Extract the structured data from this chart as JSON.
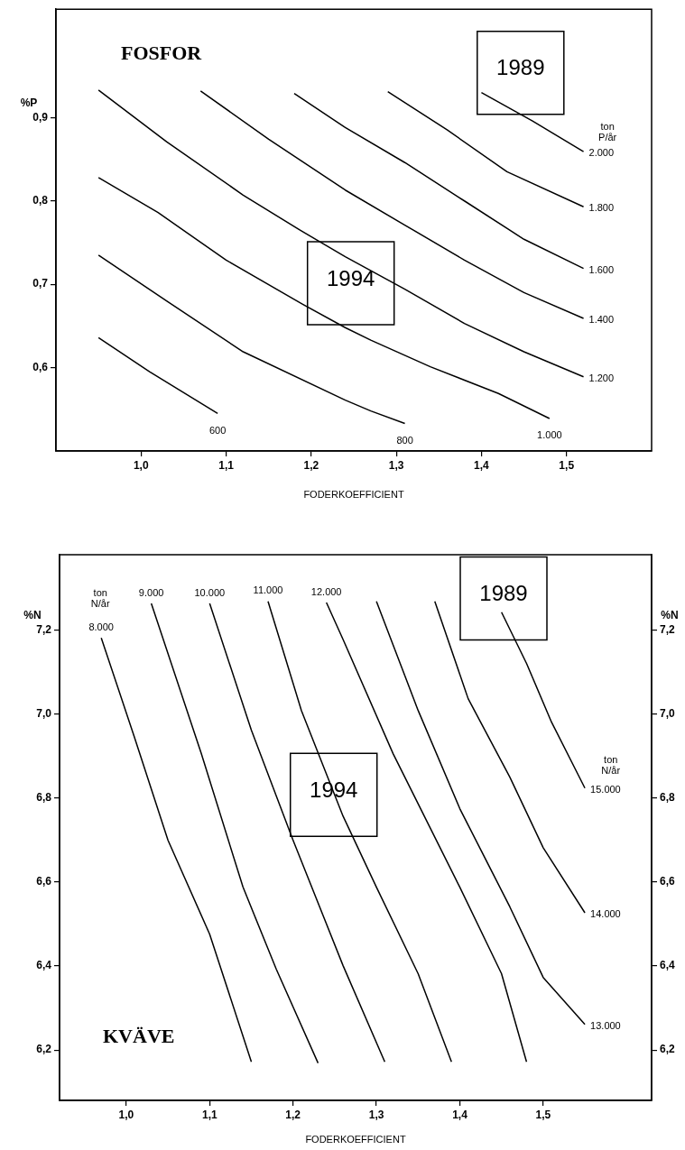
{
  "chart_data": [
    {
      "type": "line",
      "title": "FOSFOR",
      "xlabel": "FODERKOEFFICIENT",
      "ylabel": "%P",
      "xlim": [
        0.9,
        1.6
      ],
      "xticks": [
        {
          "value": 1.0,
          "label": "1,0"
        },
        {
          "value": 1.1,
          "label": "1,1"
        },
        {
          "value": 1.2,
          "label": "1,2"
        },
        {
          "value": 1.3,
          "label": "1,3"
        },
        {
          "value": 1.4,
          "label": "1,4"
        },
        {
          "value": 1.5,
          "label": "1,5"
        }
      ],
      "ylim": [
        0.5,
        1.03
      ],
      "yticks": [
        {
          "value": 0.6,
          "label": "0,6"
        },
        {
          "value": 0.7,
          "label": "0,7"
        },
        {
          "value": 0.8,
          "label": "0,8"
        },
        {
          "value": 0.9,
          "label": "0,9"
        }
      ],
      "legend": false,
      "series": [
        {
          "name": "600",
          "color": "#000000",
          "x": [
            0.95,
            1.01,
            1.09
          ],
          "values": [
            0.636,
            0.595,
            0.545
          ]
        },
        {
          "name": "800",
          "color": "#000000",
          "x": [
            0.95,
            1.03,
            1.12,
            1.24,
            1.27,
            1.31
          ],
          "values": [
            0.735,
            0.68,
            0.619,
            0.561,
            0.548,
            0.533
          ]
        },
        {
          "name": "1.000",
          "color": "#000000",
          "x": [
            0.95,
            1.02,
            1.1,
            1.19,
            1.24,
            1.27,
            1.34,
            1.42,
            1.48
          ],
          "values": [
            0.828,
            0.786,
            0.729,
            0.676,
            0.648,
            0.633,
            0.601,
            0.569,
            0.539
          ]
        },
        {
          "name": "1.200",
          "color": "#000000",
          "x": [
            0.95,
            1.03,
            1.12,
            1.19,
            1.24,
            1.31,
            1.38,
            1.45,
            1.52
          ],
          "values": [
            0.933,
            0.871,
            0.807,
            0.763,
            0.733,
            0.694,
            0.653,
            0.619,
            0.589
          ]
        },
        {
          "name": "1.400",
          "color": "#000000",
          "x": [
            1.07,
            1.15,
            1.24,
            1.31,
            1.38,
            1.45,
            1.52
          ],
          "values": [
            0.932,
            0.874,
            0.813,
            0.771,
            0.729,
            0.69,
            0.659
          ]
        },
        {
          "name": "1.600",
          "color": "#000000",
          "x": [
            1.18,
            1.24,
            1.31,
            1.38,
            1.45,
            1.52
          ],
          "values": [
            0.929,
            0.888,
            0.846,
            0.8,
            0.754,
            0.719
          ]
        },
        {
          "name": "1.800",
          "color": "#000000",
          "x": [
            1.29,
            1.36,
            1.43,
            1.52
          ],
          "values": [
            0.931,
            0.885,
            0.835,
            0.793
          ]
        },
        {
          "name": "2.000",
          "color": "#000000",
          "x": [
            1.4,
            1.46,
            1.52
          ],
          "values": [
            0.93,
            0.896,
            0.859
          ]
        }
      ],
      "annotations": [
        "1989",
        "1994",
        "ton P/år"
      ]
    },
    {
      "type": "line",
      "title": "KVÄVE",
      "xlabel": "FODERKOEFFICIENT",
      "ylabel": "%N",
      "y2label": "%N",
      "xlim": [
        0.92,
        1.63
      ],
      "xticks": [
        {
          "value": 1.0,
          "label": "1,0"
        },
        {
          "value": 1.1,
          "label": "1,1"
        },
        {
          "value": 1.2,
          "label": "1,2"
        },
        {
          "value": 1.3,
          "label": "1,3"
        },
        {
          "value": 1.4,
          "label": "1,4"
        },
        {
          "value": 1.5,
          "label": "1,5"
        }
      ],
      "ylim": [
        6.08,
        7.38
      ],
      "yticks": [
        {
          "value": 6.2,
          "label": "6,2"
        },
        {
          "value": 6.4,
          "label": "6,4"
        },
        {
          "value": 6.6,
          "label": "6,6"
        },
        {
          "value": 6.8,
          "label": "6,8"
        },
        {
          "value": 7.0,
          "label": "7,0"
        },
        {
          "value": 7.2,
          "label": "7,2"
        }
      ],
      "y2lim": [
        6.08,
        7.38
      ],
      "y2ticks": [
        {
          "value": 6.2,
          "label": "6,2"
        },
        {
          "value": 6.4,
          "label": "6,4"
        },
        {
          "value": 6.6,
          "label": "6,6"
        },
        {
          "value": 6.8,
          "label": "6,8"
        },
        {
          "value": 7.0,
          "label": "7,0"
        },
        {
          "value": 7.2,
          "label": "7,2"
        }
      ],
      "legend": false,
      "series": [
        {
          "name": "8.000",
          "color": "#000000",
          "x": [
            1.15,
            1.1,
            1.05,
            1.01,
            0.97
          ],
          "values": [
            6.172,
            6.476,
            6.7,
            6.944,
            7.182
          ]
        },
        {
          "name": "9.000",
          "color": "#000000",
          "x": [
            1.23,
            1.18,
            1.14,
            1.09,
            1.03
          ],
          "values": [
            6.169,
            6.392,
            6.588,
            6.906,
            7.264
          ]
        },
        {
          "name": "10.000",
          "color": "#000000",
          "x": [
            1.31,
            1.26,
            1.2,
            1.15,
            1.1
          ],
          "values": [
            6.172,
            6.401,
            6.7,
            6.962,
            7.264
          ]
        },
        {
          "name": "11.000",
          "color": "#000000",
          "x": [
            1.39,
            1.35,
            1.3,
            1.26,
            1.21,
            1.17
          ],
          "values": [
            6.172,
            6.382,
            6.588,
            6.757,
            7.009,
            7.269
          ]
        },
        {
          "name": "12.000",
          "color": "#000000",
          "x": [
            1.48,
            1.45,
            1.4,
            1.32,
            1.26,
            1.24
          ],
          "values": [
            6.172,
            6.382,
            6.588,
            6.906,
            7.178,
            7.266
          ]
        },
        {
          "name": "13.000",
          "color": "#000000",
          "x": [
            1.3,
            1.35,
            1.4,
            1.46,
            1.5,
            1.55
          ],
          "values": [
            7.269,
            7.009,
            6.775,
            6.541,
            6.373,
            6.261
          ]
        },
        {
          "name": "14.000",
          "color": "#000000",
          "x": [
            1.37,
            1.41,
            1.46,
            1.5,
            1.55
          ],
          "values": [
            7.269,
            7.037,
            6.85,
            6.682,
            6.527
          ]
        },
        {
          "name": "15.000",
          "color": "#000000",
          "x": [
            1.45,
            1.48,
            1.51,
            1.55
          ],
          "values": [
            7.243,
            7.121,
            6.981,
            6.824
          ]
        }
      ],
      "annotations": [
        "1989",
        "1994",
        "ton N/år",
        "ton N/år"
      ]
    }
  ]
}
